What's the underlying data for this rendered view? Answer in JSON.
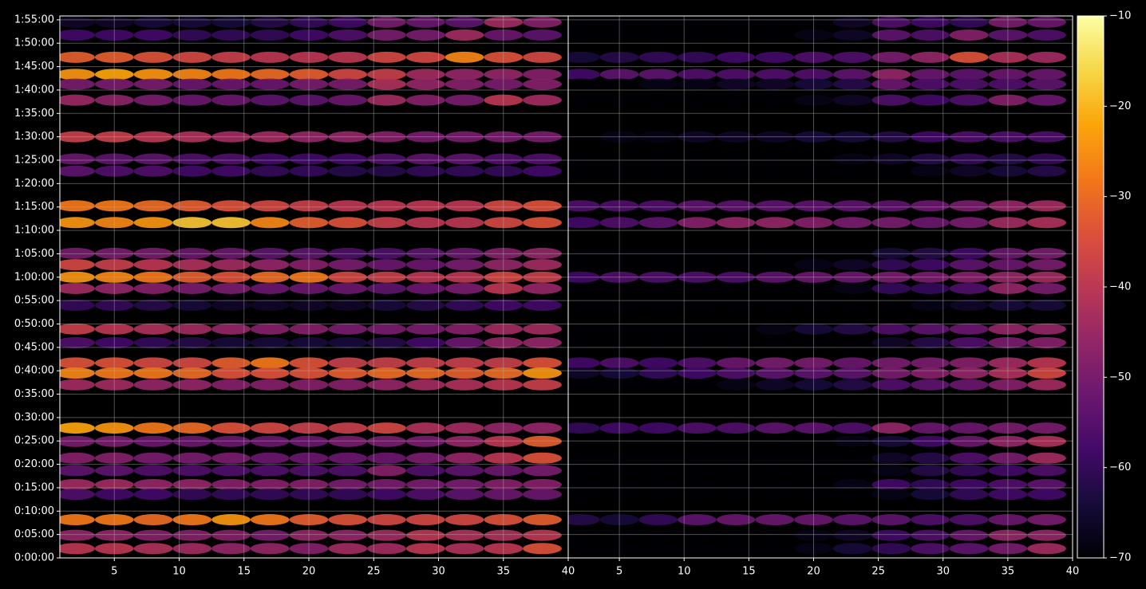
{
  "chart_data": [
    {
      "type": "heatmap",
      "colormap": "inferno",
      "clim": [
        -70,
        -10
      ],
      "grid": true,
      "xlim": [
        0.8,
        40
      ],
      "xticks": [
        5,
        10,
        15,
        20,
        25,
        30,
        35,
        40
      ],
      "ylim": [
        0,
        6950
      ],
      "yticks": [
        {
          "value": 0,
          "label": "0:00:00"
        },
        {
          "value": 300,
          "label": "0:05:00"
        },
        {
          "value": 600,
          "label": "0:10:00"
        },
        {
          "value": 900,
          "label": "0:15:00"
        },
        {
          "value": 1200,
          "label": "0:20:00"
        },
        {
          "value": 1500,
          "label": "0:25:00"
        },
        {
          "value": 1800,
          "label": "0:30:00"
        },
        {
          "value": 2100,
          "label": "0:35:00"
        },
        {
          "value": 2400,
          "label": "0:40:00"
        },
        {
          "value": 2700,
          "label": "0:45:00"
        },
        {
          "value": 3000,
          "label": "0:50:00"
        },
        {
          "value": 3300,
          "label": "0:55:00"
        },
        {
          "value": 3600,
          "label": "1:00:00"
        },
        {
          "value": 3900,
          "label": "1:05:00"
        },
        {
          "value": 4200,
          "label": "1:10:00"
        },
        {
          "value": 4500,
          "label": "1:15:00"
        },
        {
          "value": 4800,
          "label": "1:20:00"
        },
        {
          "value": 5100,
          "label": "1:25:00"
        },
        {
          "value": 5400,
          "label": "1:30:00"
        },
        {
          "value": 5700,
          "label": "1:35:00"
        },
        {
          "value": 6000,
          "label": "1:40:00"
        },
        {
          "value": 6300,
          "label": "1:45:00"
        },
        {
          "value": 6600,
          "label": "1:50:00"
        },
        {
          "value": 6900,
          "label": "1:55:00"
        }
      ],
      "x": [
        2,
        5,
        8,
        11,
        14,
        17,
        20,
        23,
        26,
        29,
        32,
        35,
        38
      ],
      "y": [
        6870,
        6705,
        6420,
        6200,
        6075,
        5870,
        5400,
        5115,
        4960,
        4515,
        4300,
        3905,
        3760,
        3600,
        3455,
        3240,
        2935,
        2760,
        2500,
        2370,
        2220,
        1665,
        1495,
        1280,
        1120,
        940,
        815,
        490,
        290,
        120
      ],
      "values": [
        [
          -66,
          -66,
          -64,
          -64,
          -64,
          -62,
          -60,
          -58,
          -50,
          -52,
          -54,
          -44,
          -48
        ],
        [
          -58,
          -58,
          -58,
          -60,
          -60,
          -60,
          -58,
          -56,
          -50,
          -50,
          -44,
          -52,
          -54
        ],
        [
          -32,
          -32,
          -34,
          -36,
          -38,
          -40,
          -40,
          -40,
          -36,
          -36,
          -26,
          -34,
          -36
        ],
        [
          -24,
          -22,
          -24,
          -26,
          -28,
          -30,
          -32,
          -36,
          -38,
          -44,
          -46,
          -46,
          -48
        ],
        [
          -50,
          -50,
          -50,
          -52,
          -52,
          -52,
          -50,
          -50,
          -42,
          -46,
          -48,
          -50,
          -48
        ],
        [
          -45,
          -47,
          -50,
          -52,
          -52,
          -54,
          -54,
          -52,
          -44,
          -48,
          -50,
          -40,
          -44
        ],
        [
          -38,
          -38,
          -40,
          -42,
          -44,
          -44,
          -46,
          -46,
          -48,
          -50,
          -50,
          -50,
          -50
        ],
        [
          -52,
          -54,
          -54,
          -56,
          -56,
          -58,
          -58,
          -58,
          -56,
          -54,
          -54,
          -56,
          -56
        ],
        [
          -54,
          -56,
          -56,
          -58,
          -58,
          -60,
          -60,
          -62,
          -62,
          -60,
          -60,
          -60,
          -58
        ],
        [
          -28,
          -28,
          -30,
          -32,
          -34,
          -36,
          -38,
          -40,
          -40,
          -40,
          -40,
          -36,
          -34
        ],
        [
          -24,
          -26,
          -24,
          -18,
          -18,
          -26,
          -32,
          -34,
          -38,
          -40,
          -40,
          -36,
          -34
        ],
        [
          -50,
          -50,
          -50,
          -52,
          -52,
          -54,
          -54,
          -56,
          -56,
          -54,
          -52,
          -48,
          -46
        ],
        [
          -36,
          -38,
          -40,
          -42,
          -44,
          -46,
          -48,
          -50,
          -52,
          -52,
          -50,
          -46,
          -44
        ],
        [
          -24,
          -26,
          -28,
          -32,
          -34,
          -30,
          -28,
          -36,
          -38,
          -40,
          -40,
          -36,
          -38
        ],
        [
          -44,
          -46,
          -48,
          -50,
          -50,
          -52,
          -52,
          -52,
          -54,
          -52,
          -50,
          -40,
          -46
        ],
        [
          -60,
          -60,
          -62,
          -64,
          -66,
          -66,
          -66,
          -66,
          -64,
          -62,
          -60,
          -58,
          -58
        ],
        [
          -38,
          -40,
          -42,
          -44,
          -46,
          -48,
          -48,
          -50,
          -50,
          -50,
          -48,
          -44,
          -44
        ],
        [
          -56,
          -58,
          -60,
          -62,
          -64,
          -64,
          -64,
          -64,
          -62,
          -58,
          -52,
          -46,
          -46
        ],
        [
          -34,
          -34,
          -36,
          -36,
          -32,
          -28,
          -34,
          -38,
          -38,
          -38,
          -38,
          -38,
          -34
        ],
        [
          -26,
          -28,
          -28,
          -30,
          -34,
          -34,
          -34,
          -32,
          -30,
          -30,
          -32,
          -30,
          -24
        ],
        [
          -44,
          -44,
          -46,
          -46,
          -48,
          -48,
          -48,
          -48,
          -46,
          -44,
          -42,
          -40,
          -38
        ],
        [
          -22,
          -24,
          -28,
          -30,
          -34,
          -36,
          -38,
          -38,
          -36,
          -42,
          -44,
          -46,
          -46
        ],
        [
          -50,
          -50,
          -52,
          -52,
          -52,
          -52,
          -52,
          -50,
          -50,
          -50,
          -46,
          -40,
          -32
        ],
        [
          -48,
          -48,
          -50,
          -50,
          -50,
          -52,
          -52,
          -52,
          -52,
          -50,
          -46,
          -40,
          -34
        ],
        [
          -54,
          -54,
          -56,
          -56,
          -56,
          -56,
          -56,
          -56,
          -48,
          -56,
          -54,
          -52,
          -50
        ],
        [
          -44,
          -44,
          -46,
          -46,
          -48,
          -48,
          -48,
          -50,
          -50,
          -50,
          -50,
          -48,
          -48
        ],
        [
          -56,
          -58,
          -58,
          -60,
          -60,
          -60,
          -60,
          -60,
          -58,
          -56,
          -54,
          -52,
          -52
        ],
        [
          -28,
          -28,
          -30,
          -28,
          -24,
          -28,
          -32,
          -34,
          -36,
          -36,
          -36,
          -34,
          -32
        ],
        [
          -46,
          -46,
          -48,
          -48,
          -48,
          -50,
          -46,
          -46,
          -44,
          -40,
          -42,
          -42,
          -40
        ],
        [
          -40,
          -40,
          -42,
          -44,
          -46,
          -46,
          -48,
          -44,
          -44,
          -40,
          -42,
          -40,
          -34
        ]
      ]
    },
    {
      "type": "heatmap",
      "colormap": "inferno",
      "clim": [
        -70,
        -10
      ],
      "grid": true,
      "xlim": [
        1.05,
        40
      ],
      "xticks": [
        5,
        10,
        15,
        20,
        25,
        30,
        35,
        40
      ],
      "ylim": [
        0,
        6950
      ],
      "cticks": [
        {
          "value": -70,
          "label": "−70"
        },
        {
          "value": -60,
          "label": "−60"
        },
        {
          "value": -50,
          "label": "−50"
        },
        {
          "value": -40,
          "label": "−40"
        },
        {
          "value": -30,
          "label": "−30"
        },
        {
          "value": -20,
          "label": "−20"
        },
        {
          "value": -10,
          "label": "−10"
        }
      ],
      "x": [
        2,
        5,
        8,
        11,
        14,
        17,
        20,
        23,
        26,
        29,
        32,
        35,
        38
      ],
      "y": [
        6870,
        6705,
        6420,
        6200,
        6075,
        5870,
        5400,
        5115,
        4960,
        4515,
        4300,
        3905,
        3760,
        3600,
        3455,
        3240,
        2935,
        2760,
        2500,
        2370,
        2220,
        1665,
        1495,
        1280,
        1120,
        940,
        815,
        490,
        290,
        120
      ],
      "values": [
        [
          -70,
          -70,
          -70,
          -70,
          -70,
          -70,
          -70,
          -66,
          -56,
          -58,
          -60,
          -50,
          -52
        ],
        [
          -70,
          -70,
          -70,
          -70,
          -70,
          -70,
          -68,
          -66,
          -54,
          -56,
          -48,
          -54,
          -56
        ],
        [
          -64,
          -62,
          -60,
          -60,
          -58,
          -58,
          -56,
          -56,
          -50,
          -46,
          -34,
          -42,
          -44
        ],
        [
          -58,
          -54,
          -54,
          -56,
          -56,
          -56,
          -56,
          -54,
          -46,
          -52,
          -54,
          -52,
          -52
        ],
        [
          -70,
          -70,
          -68,
          -68,
          -66,
          -66,
          -64,
          -62,
          -52,
          -56,
          -56,
          -56,
          -54
        ],
        [
          -70,
          -70,
          -70,
          -70,
          -70,
          -70,
          -68,
          -66,
          -56,
          -58,
          -56,
          -48,
          -52
        ],
        [
          -70,
          -68,
          -68,
          -66,
          -66,
          -66,
          -64,
          -64,
          -62,
          -58,
          -56,
          -56,
          -56
        ],
        [
          -70,
          -70,
          -70,
          -70,
          -70,
          -70,
          -70,
          -68,
          -66,
          -62,
          -60,
          -62,
          -60
        ],
        [
          -70,
          -70,
          -70,
          -70,
          -70,
          -70,
          -70,
          -70,
          -70,
          -68,
          -66,
          -64,
          -62
        ],
        [
          -56,
          -56,
          -56,
          -54,
          -54,
          -54,
          -54,
          -54,
          -54,
          -52,
          -50,
          -46,
          -44
        ],
        [
          -58,
          -56,
          -54,
          -48,
          -46,
          -46,
          -48,
          -50,
          -50,
          -52,
          -50,
          -44,
          -42
        ],
        [
          -70,
          -70,
          -70,
          -70,
          -70,
          -70,
          -70,
          -70,
          -64,
          -62,
          -58,
          -52,
          -50
        ],
        [
          -70,
          -70,
          -70,
          -70,
          -70,
          -70,
          -68,
          -66,
          -60,
          -58,
          -54,
          -52,
          -50
        ],
        [
          -58,
          -56,
          -56,
          -56,
          -56,
          -54,
          -52,
          -52,
          -50,
          -50,
          -48,
          -46,
          -44
        ],
        [
          -70,
          -70,
          -70,
          -70,
          -70,
          -70,
          -70,
          -68,
          -60,
          -60,
          -56,
          -46,
          -50
        ],
        [
          -70,
          -70,
          -70,
          -70,
          -70,
          -70,
          -70,
          -70,
          -70,
          -68,
          -66,
          -64,
          -64
        ],
        [
          -70,
          -70,
          -70,
          -70,
          -70,
          -68,
          -64,
          -62,
          -56,
          -54,
          -52,
          -46,
          -46
        ],
        [
          -70,
          -70,
          -70,
          -70,
          -70,
          -70,
          -70,
          -70,
          -66,
          -62,
          -56,
          -50,
          -48
        ],
        [
          -58,
          -56,
          -58,
          -56,
          -52,
          -50,
          -50,
          -52,
          -50,
          -50,
          -48,
          -44,
          -40
        ],
        [
          -66,
          -64,
          -60,
          -58,
          -56,
          -54,
          -54,
          -54,
          -50,
          -48,
          -46,
          -42,
          -36
        ],
        [
          -70,
          -70,
          -70,
          -70,
          -68,
          -66,
          -64,
          -62,
          -56,
          -54,
          -52,
          -48,
          -44
        ],
        [
          -60,
          -58,
          -58,
          -56,
          -56,
          -54,
          -54,
          -56,
          -46,
          -52,
          -52,
          -50,
          -50
        ],
        [
          -70,
          -70,
          -70,
          -70,
          -70,
          -70,
          -70,
          -68,
          -64,
          -58,
          -52,
          -46,
          -42
        ],
        [
          -70,
          -70,
          -70,
          -70,
          -70,
          -70,
          -70,
          -70,
          -66,
          -62,
          -56,
          -50,
          -44
        ],
        [
          -70,
          -70,
          -70,
          -70,
          -70,
          -70,
          -70,
          -70,
          -68,
          -62,
          -60,
          -58,
          -56
        ],
        [
          -70,
          -70,
          -70,
          -70,
          -70,
          -70,
          -70,
          -68,
          -58,
          -60,
          -58,
          -56,
          -54
        ],
        [
          -70,
          -70,
          -70,
          -70,
          -70,
          -70,
          -70,
          -70,
          -68,
          -64,
          -60,
          -58,
          -58
        ],
        [
          -62,
          -64,
          -60,
          -54,
          -52,
          -52,
          -52,
          -54,
          -54,
          -56,
          -56,
          -52,
          -50
        ],
        [
          -70,
          -70,
          -70,
          -70,
          -70,
          -70,
          -68,
          -66,
          -58,
          -56,
          -52,
          -46,
          -46
        ],
        [
          -70,
          -70,
          -70,
          -70,
          -70,
          -70,
          -68,
          -64,
          -60,
          -56,
          -54,
          -50,
          -44
        ]
      ]
    }
  ]
}
